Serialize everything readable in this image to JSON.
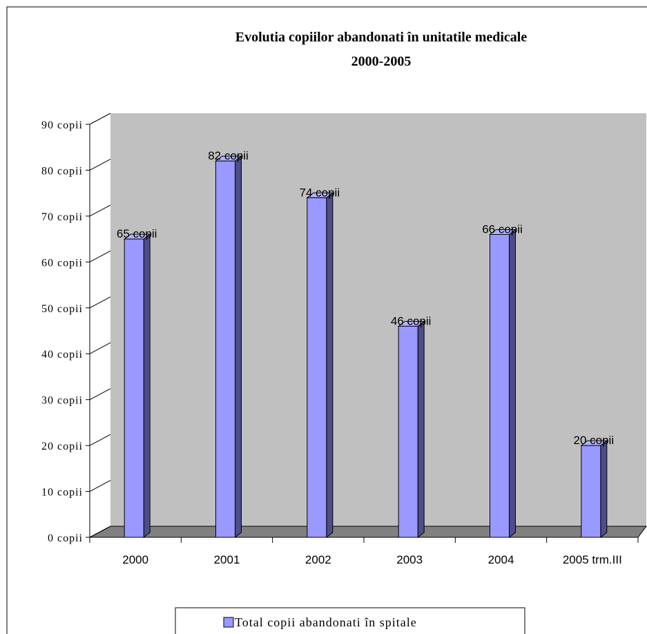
{
  "chart_data": {
    "type": "bar",
    "title": "Evolutia copiilor abandonati în unitatile medicale",
    "subtitle": "2000-2005",
    "categories": [
      "2000",
      "2001",
      "2002",
      "2003",
      "2004",
      "2005 trm.III"
    ],
    "series": [
      {
        "name": "Total copii abandonati în spitale",
        "values": [
          65,
          82,
          74,
          46,
          66,
          20
        ],
        "data_labels": [
          "65 copii",
          "82 copii",
          "74 copii",
          "46 copii",
          "66 copii",
          "20 copii"
        ]
      }
    ],
    "y_ticks": [
      "0 copii",
      "10 copii",
      "20 copii",
      "30 copii",
      "40 copii",
      "50 copii",
      "60 copii",
      "70 copii",
      "80 copii",
      "90 copii"
    ],
    "ylim": [
      0,
      90
    ],
    "grid": false,
    "legend_position": "bottom",
    "colors": {
      "bar_front": "#9999ff",
      "bar_side": "#4d4d88",
      "bar_top": "#b3b3ff",
      "wall": "#c0c0c0",
      "floor": "#808080"
    }
  }
}
